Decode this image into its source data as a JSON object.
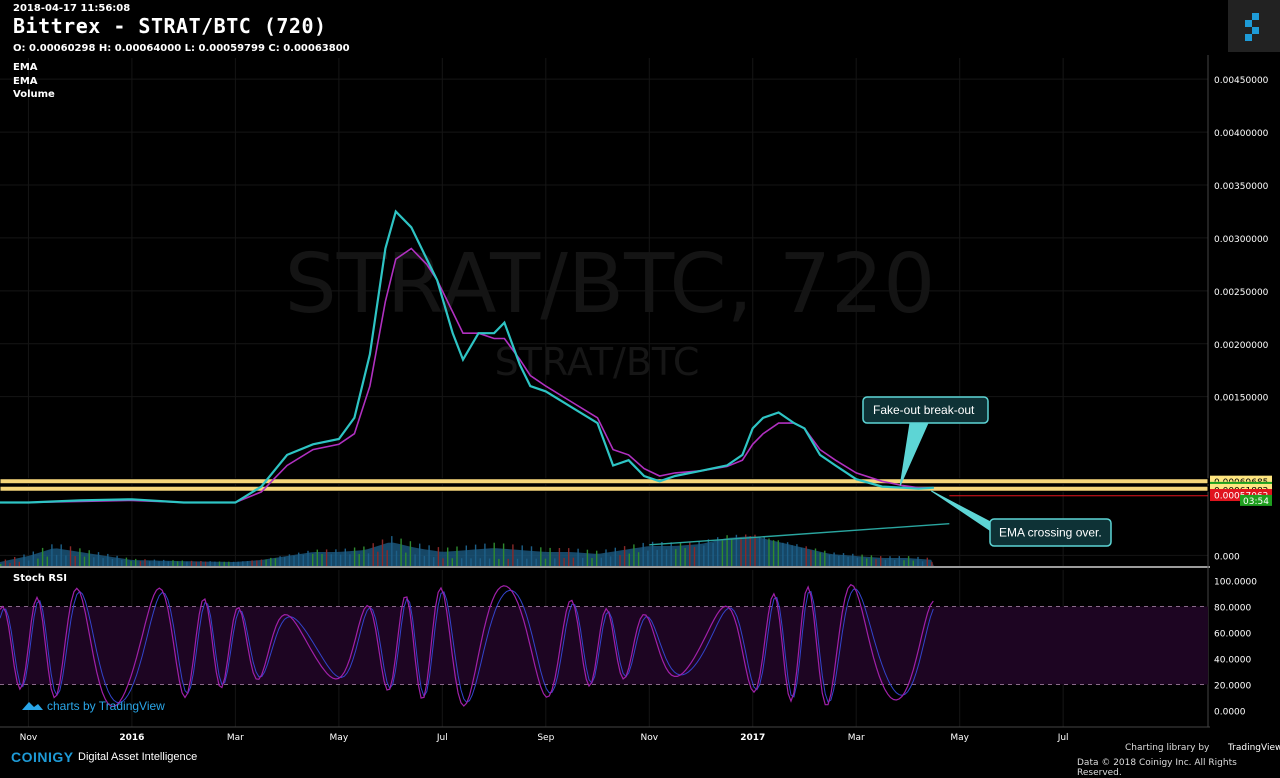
{
  "header": {
    "timestamp": "2018-04-17 11:56:08",
    "title": "Bittrex - STRAT/BTC (720)",
    "ohlc": "O: 0.00060298 H: 0.00064000 L: 0.00059799 C: 0.00063800"
  },
  "indicators": [
    "EMA",
    "EMA",
    "Volume"
  ],
  "watermark": {
    "main": "STRAT/BTC, 720",
    "sub": "STRAT/BTC"
  },
  "oscillator_label": "Stoch RSI",
  "tradingview_badge": "charts by TradingView",
  "footer": {
    "brand": "COINIGY",
    "tagline": "Digital Asset Intelligence",
    "charting": "Charting library by",
    "tv": "TradingView",
    "copyright": "Data © 2018   Coinigy Inc. All Rights Reserved."
  },
  "colors": {
    "ema_fast": "#2ec4c4",
    "ema_slow": "#b030c0",
    "horizontal_band": "#f5d57a",
    "support_line": "#2aa6a0",
    "stoch_k": "#a020a8",
    "stoch_d": "#3344cc",
    "current_price_tag": "#1fa01f",
    "alert_tag": "#e0141e"
  },
  "chart_data": {
    "type": "line",
    "price_axis": {
      "ticks": [
        "0.00450000",
        "0.00400000",
        "0.00350000",
        "0.00300000",
        "0.00250000",
        "0.00200000",
        "0.00150000",
        "0.000"
      ],
      "tick_values": [
        0.0045,
        0.004,
        0.0035,
        0.003,
        0.0025,
        0.002,
        0.0015,
        0.0
      ],
      "ylim": [
        -0.0001,
        0.0047
      ]
    },
    "price_tags": [
      {
        "value": 0.00069685,
        "label": "0.00069685",
        "color": "#ffe680"
      },
      {
        "value": 0.00064078,
        "label": "0.00064078",
        "color": "#ffe680"
      },
      {
        "value": 0.000638,
        "label": "0.00063800",
        "color": "#1fa01f"
      },
      {
        "value": 0.00061882,
        "label": "0.00061882",
        "color": "#ffe680"
      },
      {
        "value": 0.00057062,
        "label": "0.00057062",
        "color": "#e0141e"
      }
    ],
    "countdown": "03:54",
    "time_axis": {
      "ticks": [
        "Nov",
        "2016",
        "Mar",
        "May",
        "Jul",
        "Sep",
        "Nov",
        "2017",
        "Mar",
        "May",
        "Jul"
      ],
      "bold": [
        false,
        true,
        false,
        false,
        false,
        false,
        false,
        true,
        false,
        false,
        false
      ],
      "tick_t": [
        0.0,
        2.0,
        4.0,
        6.0,
        8.0,
        10.0,
        12.0,
        14.0,
        16.0,
        18.0,
        20.0
      ],
      "xlim": [
        -0.55,
        22.8
      ]
    },
    "series": [
      {
        "name": "EMA",
        "t": [
          -0.55,
          0.0,
          1.0,
          2.0,
          3.0,
          4.0,
          4.5,
          5.0,
          5.5,
          6.0,
          6.3,
          6.6,
          6.9,
          7.1,
          7.4,
          7.7,
          7.9,
          8.2,
          8.4,
          8.7,
          9.0,
          9.2,
          9.5,
          9.7,
          10.0,
          10.5,
          11.0,
          11.3,
          11.6,
          11.9,
          12.2,
          12.5,
          13.0,
          13.5,
          13.8,
          14.0,
          14.2,
          14.5,
          14.8,
          15.0,
          15.3,
          15.6,
          16.0,
          16.5,
          16.9,
          17.2,
          17.5
        ],
        "values": [
          0.0005,
          0.0005,
          0.00052,
          0.00053,
          0.0005,
          0.0005,
          0.00065,
          0.00095,
          0.00105,
          0.0011,
          0.0013,
          0.0019,
          0.0029,
          0.00325,
          0.0031,
          0.0028,
          0.0026,
          0.0021,
          0.00185,
          0.0021,
          0.0021,
          0.0022,
          0.0018,
          0.0016,
          0.00155,
          0.0014,
          0.00125,
          0.00085,
          0.0009,
          0.00075,
          0.0007,
          0.00075,
          0.0008,
          0.00085,
          0.00095,
          0.0012,
          0.0013,
          0.00135,
          0.00125,
          0.0012,
          0.00095,
          0.00085,
          0.00072,
          0.00065,
          0.00064,
          0.00063,
          0.00064
        ]
      },
      {
        "name": "EMA",
        "t": [
          -0.55,
          0.0,
          1.0,
          2.0,
          3.0,
          4.0,
          4.5,
          5.0,
          5.5,
          6.0,
          6.3,
          6.6,
          6.9,
          7.1,
          7.4,
          7.7,
          7.9,
          8.2,
          8.4,
          8.7,
          9.0,
          9.2,
          9.5,
          9.7,
          10.0,
          10.5,
          11.0,
          11.3,
          11.6,
          11.9,
          12.2,
          12.5,
          13.0,
          13.5,
          13.8,
          14.0,
          14.2,
          14.5,
          14.8,
          15.0,
          15.3,
          15.6,
          16.0,
          16.5,
          16.9,
          17.2,
          17.5
        ],
        "values": [
          0.0005,
          0.0005,
          0.00051,
          0.00052,
          0.0005,
          0.0005,
          0.0006,
          0.00085,
          0.001,
          0.00105,
          0.00115,
          0.0016,
          0.0024,
          0.0028,
          0.0029,
          0.00275,
          0.0026,
          0.0023,
          0.0021,
          0.0021,
          0.00205,
          0.00205,
          0.00185,
          0.0017,
          0.0016,
          0.00145,
          0.0013,
          0.001,
          0.00095,
          0.00082,
          0.00075,
          0.00078,
          0.0008,
          0.00084,
          0.0009,
          0.00105,
          0.00115,
          0.00125,
          0.00125,
          0.0012,
          0.001,
          0.0009,
          0.00078,
          0.0007,
          0.00066,
          0.00064,
          0.00064
        ]
      }
    ],
    "horizontal_levels": [
      0.000701,
      0.00063
    ],
    "support_trendline": {
      "t": [
        12.0,
        17.8
      ],
      "values": [
        0.0001,
        0.0003
      ]
    },
    "volume": {
      "t": [
        -0.55,
        0.0,
        0.5,
        1.0,
        2.0,
        3.0,
        4.0,
        4.5,
        5.0,
        5.5,
        6.0,
        6.5,
        7.0,
        7.5,
        8.0,
        8.5,
        9.0,
        9.5,
        10.0,
        10.5,
        11.0,
        11.5,
        12.0,
        12.5,
        13.0,
        13.5,
        14.0,
        14.5,
        15.0,
        15.5,
        16.0,
        16.5,
        17.0,
        17.5
      ],
      "values": [
        0.1,
        0.25,
        0.45,
        0.35,
        0.15,
        0.12,
        0.1,
        0.15,
        0.25,
        0.35,
        0.35,
        0.4,
        0.6,
        0.45,
        0.35,
        0.4,
        0.45,
        0.4,
        0.35,
        0.35,
        0.3,
        0.4,
        0.5,
        0.5,
        0.55,
        0.7,
        0.75,
        0.6,
        0.45,
        0.3,
        0.25,
        0.2,
        0.2,
        0.15
      ]
    },
    "annotations": [
      {
        "text": "Fake-out break-out",
        "anchor_t": 16.85,
        "anchor_value": 0.00066
      },
      {
        "text": "EMA crossing over.",
        "anchor_t": 17.45,
        "anchor_value": 0.00061
      }
    ],
    "stoch_rsi": {
      "ticks": [
        "100.0000",
        "80.0000",
        "60.0000",
        "40.0000",
        "20.0000",
        "0.0000"
      ],
      "tick_values": [
        100,
        80,
        60,
        40,
        20,
        0
      ],
      "bands": [
        20,
        80
      ],
      "ylim": [
        -5,
        105
      ]
    }
  }
}
